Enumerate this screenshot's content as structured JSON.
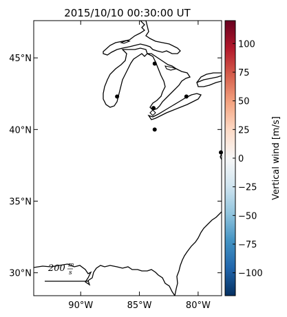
{
  "title": "2015/10/10 00:30:00 UT",
  "map": {
    "lon_ticks": [
      {
        "lon": -90,
        "label": "90°W"
      },
      {
        "lon": -85,
        "label": "85°W"
      },
      {
        "lon": -80,
        "label": "80°W"
      }
    ],
    "lat_ticks": [
      {
        "lat": 45,
        "label": "45°N"
      },
      {
        "lat": 40,
        "label": "40°N"
      },
      {
        "lat": 35,
        "label": "35°N"
      },
      {
        "lat": 30,
        "label": "30°N"
      }
    ],
    "lon_range": [
      -94,
      -78
    ],
    "lat_range": [
      28.4,
      47.6
    ],
    "stations": [
      {
        "lon": -86.9,
        "lat": 42.3
      },
      {
        "lon": -83.7,
        "lat": 44.6
      },
      {
        "lon": -83.8,
        "lat": 41.5
      },
      {
        "lon": -83.7,
        "lat": 40.0
      },
      {
        "lon": -81.0,
        "lat": 42.3
      },
      {
        "lon": -78.0,
        "lat": 38.4
      }
    ],
    "scale_arrow": {
      "label_value": "200",
      "label_unit_num": "m",
      "label_unit_den": "s"
    }
  },
  "colorbar": {
    "label": "Vertical wind [m/s]",
    "min": -120,
    "max": 120,
    "ticks": [
      {
        "value": 100,
        "label": "100"
      },
      {
        "value": 75,
        "label": "75"
      },
      {
        "value": 50,
        "label": "50"
      },
      {
        "value": 25,
        "label": "25"
      },
      {
        "value": 0,
        "label": "0"
      },
      {
        "value": -25,
        "label": "−25"
      },
      {
        "value": -50,
        "label": "−50"
      },
      {
        "value": -75,
        "label": "−75"
      },
      {
        "value": -100,
        "label": "−100"
      }
    ],
    "colormap": [
      "#053061",
      "#2166ac",
      "#4393c3",
      "#92c5de",
      "#d1e5f0",
      "#f7f7f7",
      "#fddbc7",
      "#f4a582",
      "#d6604d",
      "#b2182b",
      "#67001f"
    ]
  }
}
